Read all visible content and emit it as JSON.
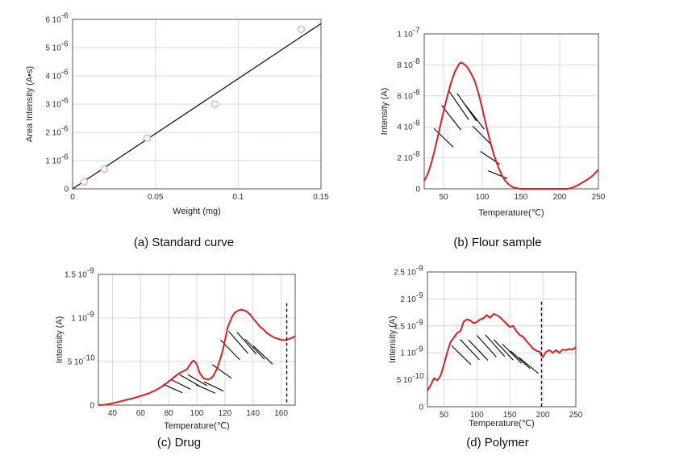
{
  "colors": {
    "curve": "#dd1f1f",
    "fit": "#111111",
    "marker": "#e6a3b6",
    "grid": "#c9cdef",
    "hatch": "#111111"
  },
  "chart_data": [
    {
      "id": "a",
      "type": "scatter",
      "caption": "(a)  Standard curve",
      "xlabel": "Weight (mg)",
      "ylabel": "Area Intensity (A•s)",
      "xlim": [
        0,
        0.15
      ],
      "ylim": [
        0,
        6e-06
      ],
      "xticks": [
        0,
        0.05,
        0.1,
        0.15
      ],
      "xtick_labels": [
        "0",
        "0.05",
        "0.1",
        "0.15"
      ],
      "yticks": [
        0,
        1e-06,
        2e-06,
        3e-06,
        4e-06,
        5e-06,
        6e-06
      ],
      "ytick_labels": [
        "0",
        "1 10",
        "2 10",
        "3 10",
        "4 10",
        "5 10",
        "6 10"
      ],
      "ytick_exp": "-6",
      "points": [
        [
          0.007,
          2.5e-07
        ],
        [
          0.019,
          7e-07
        ],
        [
          0.045,
          1.8e-06
        ],
        [
          0.086,
          3e-06
        ],
        [
          0.138,
          5.65e-06
        ]
      ],
      "fit_line": [
        [
          0,
          0
        ],
        [
          0.15,
          5.85e-06
        ]
      ]
    },
    {
      "id": "b",
      "type": "line",
      "caption": "(b)  Flour sample",
      "xlabel": "Temperature(℃)",
      "ylabel": "Intensity (A)",
      "xlim": [
        25,
        250
      ],
      "ylim": [
        0,
        1e-07
      ],
      "xticks": [
        50,
        100,
        150,
        200,
        250
      ],
      "xtick_labels": [
        "50",
        "100",
        "150",
        "200",
        "250"
      ],
      "yticks": [
        0,
        2e-08,
        4e-08,
        6e-08,
        8e-08,
        1e-07
      ],
      "ytick_labels": [
        "0",
        "2 10",
        "4 10",
        "6 10",
        "8 10",
        "1 10"
      ],
      "ytick_exps": [
        "",
        "-8",
        "-8",
        "-8",
        "-8",
        "-7"
      ],
      "x": [
        25,
        30,
        35,
        40,
        45,
        50,
        55,
        60,
        65,
        70,
        72,
        75,
        80,
        85,
        90,
        95,
        100,
        105,
        110,
        115,
        120,
        125,
        130,
        135,
        140,
        145,
        150,
        160,
        180,
        200,
        210,
        215,
        220,
        225,
        230,
        235,
        240,
        245,
        250
      ],
      "y": [
        5e-09,
        1e-08,
        1.8e-08,
        2.8e-08,
        3.9e-08,
        5e-08,
        6e-08,
        6.9e-08,
        7.6e-08,
        8.05e-08,
        8.15e-08,
        8.1e-08,
        7.9e-08,
        7.5e-08,
        7e-08,
        6.2e-08,
        5.2e-08,
        4.1e-08,
        3.1e-08,
        2.2e-08,
        1.5e-08,
        9e-09,
        5e-09,
        2.5e-09,
        1e-09,
        3e-10,
        0,
        0,
        0,
        0,
        0,
        5e-10,
        1.5e-09,
        2.8e-09,
        4.2e-09,
        5.8e-09,
        7.5e-09,
        9.6e-09,
        1.25e-08
      ],
      "hatch_xrange": [
        45,
        125
      ]
    },
    {
      "id": "c",
      "type": "line",
      "caption": "(c)  Drug",
      "xlabel": "Temperature(℃)",
      "ylabel": "Intensity (A)",
      "xlim": [
        30,
        170
      ],
      "ylim": [
        0,
        1.5e-09
      ],
      "xticks": [
        40,
        60,
        80,
        100,
        120,
        140,
        160
      ],
      "xtick_labels": [
        "40",
        "60",
        "80",
        "100",
        "120",
        "140",
        "160"
      ],
      "yticks": [
        0,
        5e-10,
        1e-09,
        1.5e-09
      ],
      "ytick_labels": [
        "0",
        "5 10",
        "1 10",
        "1.5 10"
      ],
      "ytick_exps": [
        "",
        "-10",
        "-9",
        "-9"
      ],
      "x": [
        30,
        35,
        40,
        45,
        50,
        55,
        60,
        65,
        70,
        75,
        80,
        85,
        88,
        90,
        93,
        95,
        97,
        98,
        100,
        102,
        105,
        108,
        110,
        112,
        115,
        118,
        120,
        122,
        125,
        127,
        130,
        132,
        135,
        138,
        140,
        143,
        145,
        148,
        150,
        153,
        155,
        158,
        160,
        163,
        165,
        168,
        170
      ],
      "y": [
        0,
        5e-12,
        2e-11,
        4e-11,
        6e-11,
        8e-11,
        1.05e-10,
        1.3e-10,
        1.65e-10,
        2.1e-10,
        2.7e-10,
        3.35e-10,
        3.7e-10,
        3.85e-10,
        4.1e-10,
        4.6e-10,
        5.05e-10,
        5.1e-10,
        4.7e-10,
        3.7e-10,
        3.05e-10,
        2.95e-10,
        3.05e-10,
        3.4e-10,
        4.4e-10,
        6e-10,
        7.4e-10,
        8.9e-10,
        1.01e-09,
        1.06e-09,
        1.09e-09,
        1.095e-09,
        1.08e-09,
        1.04e-09,
        9.95e-10,
        9.4e-10,
        9e-10,
        8.6e-10,
        8.25e-10,
        7.95e-10,
        7.75e-10,
        7.6e-10,
        7.5e-10,
        7.45e-10,
        7.55e-10,
        7.75e-10,
        7.9e-10
      ],
      "hatch_xrange": [
        80,
        150
      ],
      "dashed_x": 164
    },
    {
      "id": "d",
      "type": "line",
      "caption": "(d)  Polymer",
      "xlabel": "Temperature(℃)",
      "ylabel": "Intensity (A)",
      "xlim": [
        25,
        250
      ],
      "ylim": [
        0,
        2.5e-09
      ],
      "xticks": [
        50,
        100,
        150,
        200,
        250
      ],
      "xtick_labels": [
        "50",
        "100",
        "150",
        "200",
        "250"
      ],
      "yticks": [
        0,
        5e-10,
        1e-09,
        1.5e-09,
        2e-09,
        2.5e-09
      ],
      "ytick_labels": [
        "0",
        "5 10",
        "1 10",
        "1.5 10",
        "2 10",
        "2.5 10"
      ],
      "ytick_exps": [
        "",
        "-10",
        "-9",
        "-9",
        "-9",
        "-9"
      ],
      "x": [
        25,
        30,
        35,
        40,
        45,
        50,
        55,
        60,
        65,
        70,
        75,
        80,
        85,
        90,
        95,
        100,
        105,
        110,
        115,
        120,
        125,
        130,
        135,
        140,
        145,
        150,
        155,
        160,
        165,
        170,
        175,
        180,
        185,
        190,
        195,
        198,
        200,
        205,
        210,
        215,
        220,
        225,
        230,
        235,
        240,
        245,
        250
      ],
      "y": [
        3e-10,
        4e-10,
        5.3e-10,
        4.9e-10,
        5.8e-10,
        7.8e-10,
        1e-09,
        1.2e-09,
        1.28e-09,
        1.37e-09,
        1.4e-09,
        1.58e-09,
        1.62e-09,
        1.6e-09,
        1.55e-09,
        1.57e-09,
        1.62e-09,
        1.64e-09,
        1.7e-09,
        1.65e-09,
        1.72e-09,
        1.7e-09,
        1.66e-09,
        1.6e-09,
        1.54e-09,
        1.48e-09,
        1.5e-09,
        1.4e-09,
        1.33e-09,
        1.3e-09,
        1.22e-09,
        1.15e-09,
        1.08e-09,
        1.04e-09,
        1.02e-09,
        9.5e-10,
        9.2e-10,
        1.02e-09,
        1.05e-09,
        1e-09,
        1.05e-09,
        1e-09,
        1.06e-09,
        1.05e-09,
        1.07e-09,
        1.06e-09,
        1.1e-09
      ],
      "hatch_xrange": [
        70,
        185
      ],
      "dashed_x": 198
    }
  ]
}
